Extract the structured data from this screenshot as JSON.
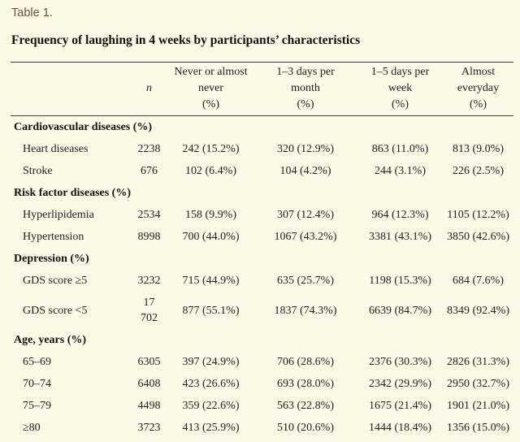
{
  "page": {
    "table_label": "Table 1.",
    "title": "Frequency of laughing in 4 weeks by participants’ characteristics"
  },
  "table": {
    "columns": {
      "row_header": "",
      "n": "n",
      "c1": "Never or almost\nnever\n(%)",
      "c2": "1–3 days per\nmonth\n(%)",
      "c3": "1–5 days per\nweek\n(%)",
      "c4": "Almost\neveryday\n(%)"
    },
    "rows": [
      {
        "label": "Cardiovascular diseases (%)",
        "type": "section"
      },
      {
        "label": "Heart diseases",
        "n": "2238",
        "c1": "242 (15.2%)",
        "c2": "320 (12.9%)",
        "c3": "863 (11.0%)",
        "c4": "813 (9.0%)"
      },
      {
        "label": "Stroke",
        "n": "676",
        "c1": "102 (6.4%)",
        "c2": "104 (4.2%)",
        "c3": "244 (3.1%)",
        "c4": "226 (2.5%)"
      },
      {
        "label": "Risk factor diseases (%)",
        "type": "section"
      },
      {
        "label": "Hyperlipidemia",
        "n": "2534",
        "c1": "158 (9.9%)",
        "c2": "307 (12.4%)",
        "c3": "964 (12.3%)",
        "c4": "1105 (12.2%)"
      },
      {
        "label": "Hypertension",
        "n": "8998",
        "c1": "700 (44.0%)",
        "c2": "1067 (43.2%)",
        "c3": "3381 (43.1%)",
        "c4": "3850 (42.6%)"
      },
      {
        "label": "Depression (%)",
        "type": "section"
      },
      {
        "label": "GDS score ≥5",
        "n": "3232",
        "c1": "715 (44.9%)",
        "c2": "635 (25.7%)",
        "c3": "1198 (15.3%)",
        "c4": "684 (7.6%)"
      },
      {
        "label": "GDS score <5",
        "n": "17\n702",
        "c1": "877 (55.1%)",
        "c2": "1837 (74.3%)",
        "c3": "6639 (84.7%)",
        "c4": "8349 (92.4%)"
      },
      {
        "label": "Age, years (%)",
        "type": "section"
      },
      {
        "label": "65–69",
        "n": "6305",
        "c1": "397 (24.9%)",
        "c2": "706 (28.6%)",
        "c3": "2376 (30.3%)",
        "c4": "2826 (31.3%)"
      },
      {
        "label": "70–74",
        "n": "6408",
        "c1": "423 (26.6%)",
        "c2": "693 (28.0%)",
        "c3": "2342 (29.9%)",
        "c4": "2950 (32.7%)"
      },
      {
        "label": "75–79",
        "n": "4498",
        "c1": "359 (22.6%)",
        "c2": "563 (22.8%)",
        "c3": "1675 (21.4%)",
        "c4": "1901 (21.0%)"
      },
      {
        "label": "≥80",
        "n": "3723",
        "c1": "413 (25.9%)",
        "c2": "510 (20.6%)",
        "c3": "1444 (18.4%)",
        "c4": "1356 (15.0%)"
      }
    ]
  }
}
